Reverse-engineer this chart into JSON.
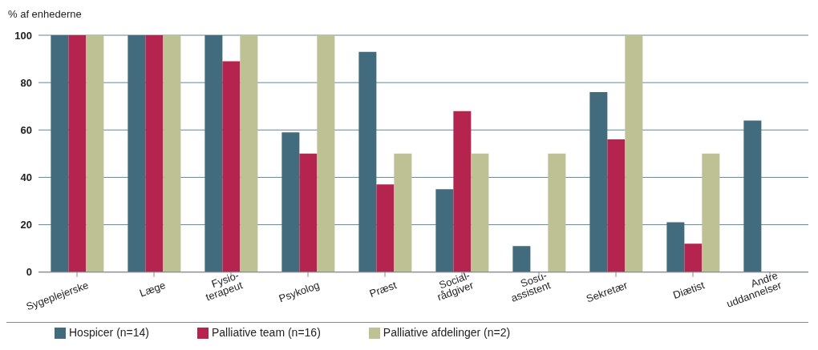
{
  "chart_data": {
    "type": "bar",
    "ylabel": "% af enhederne",
    "categories": [
      "Sygeplejerske",
      "Læge",
      "Fysio-\nterapeut",
      "Psykolog",
      "Præst",
      "Social-\nrådgiver",
      "Sosu-\nassistent",
      "Sekretær",
      "Diætist",
      "Andre\nuddannelser"
    ],
    "series": [
      {
        "name": "Hospicer (n=14)",
        "color": "#436b7e",
        "values": [
          100,
          100,
          100,
          59,
          93,
          35,
          11,
          76,
          21,
          64
        ]
      },
      {
        "name": "Palliative team (n=16)",
        "color": "#b5244f",
        "values": [
          100,
          100,
          89,
          50,
          37,
          68,
          null,
          56,
          12,
          null
        ]
      },
      {
        "name": "Palliative afdelinger (n=2)",
        "color": "#bec194",
        "values": [
          100,
          100,
          100,
          100,
          50,
          50,
          50,
          100,
          50,
          null
        ]
      }
    ],
    "ylim": [
      0,
      100
    ],
    "yticks": [
      0,
      20,
      40,
      60,
      80,
      100
    ],
    "grid": "y",
    "legend": "bottom left"
  }
}
